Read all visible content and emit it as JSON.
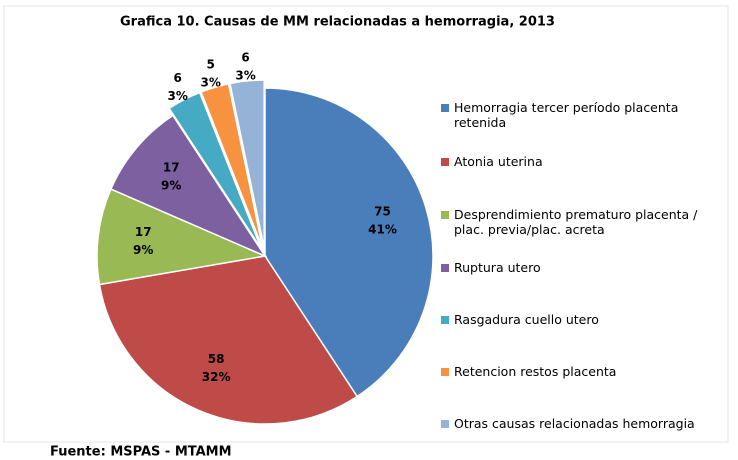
{
  "chart_data": {
    "type": "pie",
    "title": "Grafica 10. Causas de MM relacionadas a hemorragia, 2013",
    "source": "Fuente: MSPAS - MTAMM",
    "categories": [
      "Hemorragia tercer período placenta retenida",
      "Atonia uterina",
      "Desprendimiento prematuro placenta / plac. previa/plac. acreta",
      "Ruptura utero",
      "Rasgadura cuello utero",
      "Retencion restos placenta",
      "Otras causas relacionadas hemorragia"
    ],
    "values": [
      75,
      58,
      17,
      17,
      6,
      5,
      6
    ],
    "percent_labels": [
      "41%",
      "32%",
      "9%",
      "9%",
      "3%",
      "3%",
      "3%"
    ],
    "colors": [
      "#4a7ebb",
      "#be4b48",
      "#98b954",
      "#7d60a0",
      "#46aac5",
      "#f69240",
      "#95b3d7"
    ],
    "legend": "right"
  }
}
